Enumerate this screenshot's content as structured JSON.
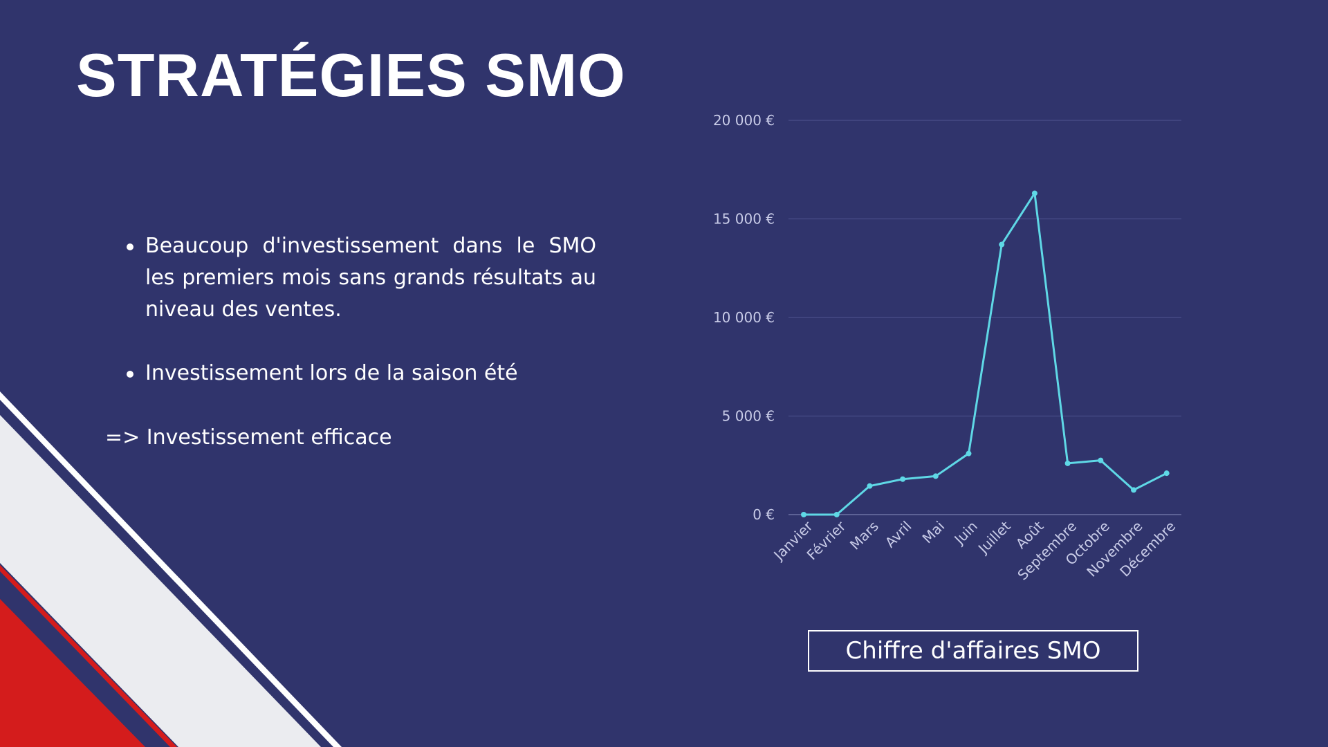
{
  "slide": {
    "title": "STRATÉGIES SMO",
    "bullets": [
      "Beaucoup d'investissement dans le SMO les premiers mois sans grands résultats au niveau des ventes.",
      "Investissement lors de la saison été"
    ],
    "conclusion": "=> Investissement efficace"
  },
  "colors": {
    "background": "#30346c",
    "line": "#5fd8e6",
    "stripe_light": "#ebecf0",
    "stripe_red": "#d41c1c",
    "text": "#ffffff"
  },
  "chart_data": {
    "type": "line",
    "categories": [
      "Janvier",
      "Février",
      "Mars",
      "Avril",
      "Mai",
      "Juin",
      "Juillet",
      "Août",
      "Septembre",
      "Octobre",
      "Novembre",
      "Décembre"
    ],
    "series": [
      {
        "name": "Chiffre d'affaires SMO",
        "values": [
          0,
          0,
          1450,
          1800,
          1950,
          3100,
          13700,
          16300,
          2600,
          2750,
          1250,
          2100
        ]
      }
    ],
    "ylim": [
      0,
      20000
    ],
    "yticks": [
      {
        "value": 0,
        "label": "0 €"
      },
      {
        "value": 5000,
        "label": "5 000 €"
      },
      {
        "value": 10000,
        "label": "10 000 €"
      },
      {
        "value": 15000,
        "label": "15 000 €"
      },
      {
        "value": 20000,
        "label": "20 000 €"
      }
    ],
    "grid": true,
    "legend_position": "bottom"
  }
}
